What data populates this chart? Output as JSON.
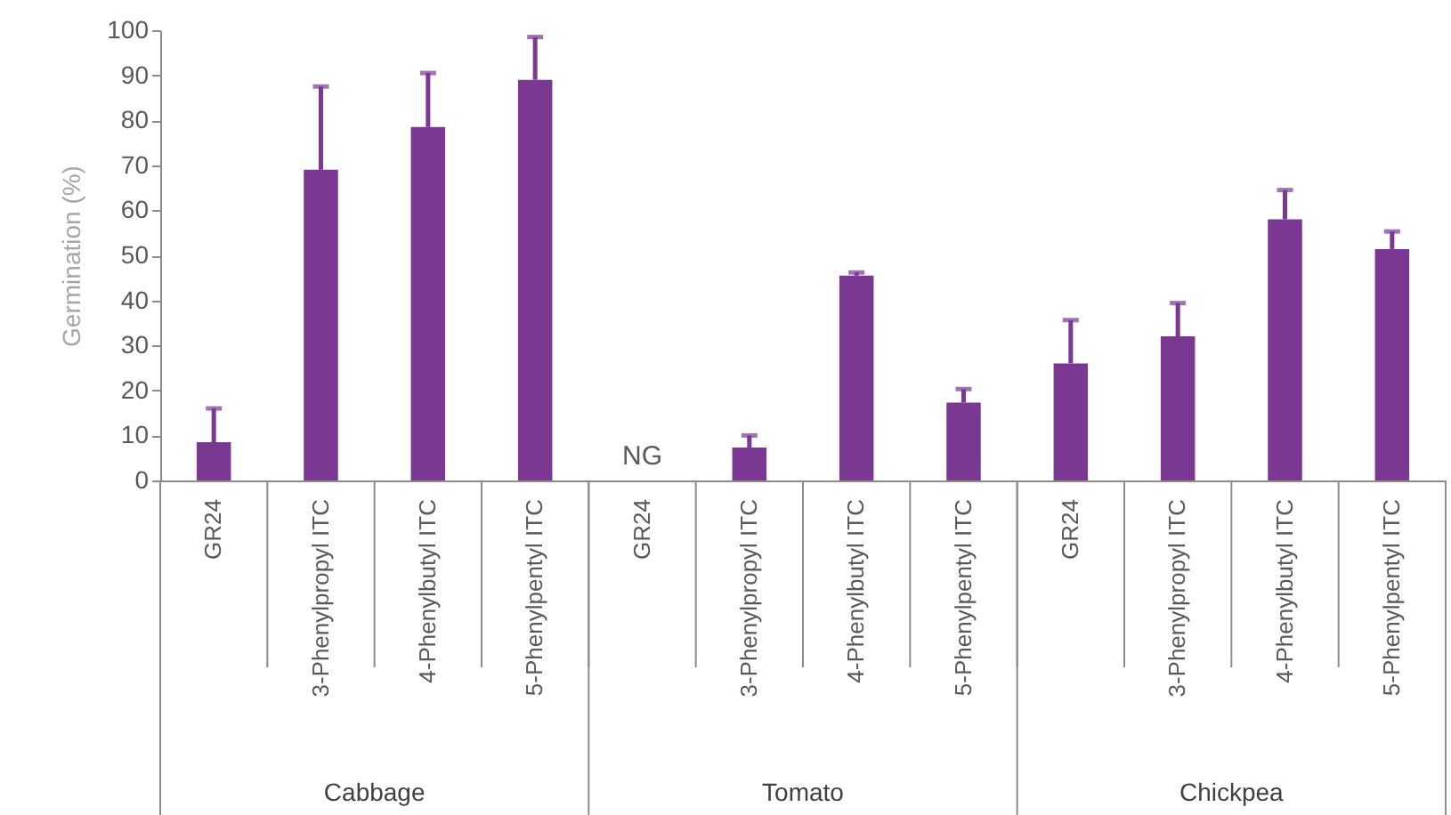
{
  "chart_data": {
    "type": "bar",
    "ylabel": "Germination (%)",
    "categories": [
      "GR24",
      "3-Phenylpropyl ITC",
      "4-Phenylbutyl ITC",
      "5-Phenylpentyl ITC",
      "GR24",
      "3-Phenylpropyl ITC",
      "4-Phenylbutyl ITC",
      "5-Phenylpentyl ITC",
      "GR24",
      "3-Phenylpropyl ITC",
      "4-Phenylbutyl ITC",
      "5-Phenylpentyl ITC"
    ],
    "values": [
      8.5,
      69,
      78.5,
      89,
      0,
      7.3,
      45.5,
      17.3,
      26,
      32,
      58,
      51.4
    ],
    "errors": [
      [
        8.5,
        16
      ],
      [
        69,
        87.5
      ],
      [
        78.5,
        90.5
      ],
      [
        89,
        98.5
      ],
      null,
      [
        7.3,
        10
      ],
      [
        45.5,
        46.2
      ],
      [
        17.3,
        20.3
      ],
      [
        26,
        35.6
      ],
      [
        32,
        39.4
      ],
      [
        58,
        64.5
      ],
      [
        51.4,
        55.3
      ]
    ],
    "value_labels": [
      null,
      null,
      null,
      null,
      "NG",
      null,
      null,
      null,
      null,
      null,
      null,
      null
    ],
    "color": "#7b3893",
    "annotations": [
      "Cabbage",
      "Tomato",
      "Chickpea"
    ],
    "ylim": [
      0,
      100
    ],
    "yticks": [
      0,
      10,
      20,
      30,
      40,
      50,
      60,
      70,
      80,
      90,
      100
    ],
    "grid": false
  }
}
